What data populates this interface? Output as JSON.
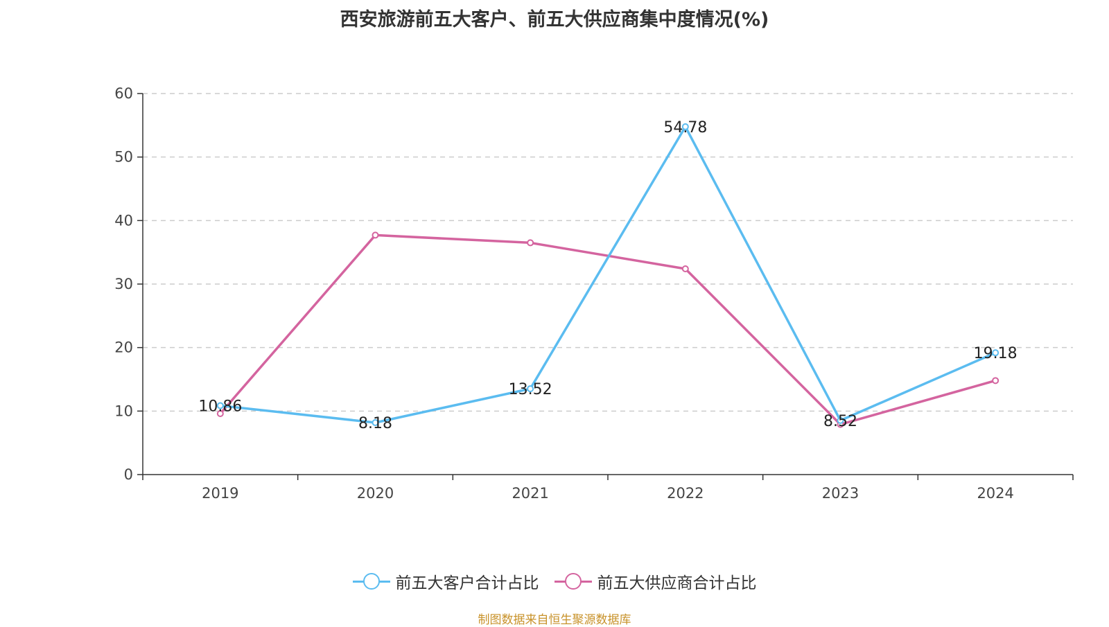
{
  "title": "西安旅游前五大客户、前五大供应商集中度情况(%)",
  "source": "制图数据来自恒生聚源数据库",
  "colors": {
    "series1": "#5bbcf0",
    "series2": "#d4649f",
    "grid": "#cccccc",
    "axis": "#333333"
  },
  "chart_data": {
    "type": "line",
    "title": "西安旅游前五大客户、前五大供应商集中度情况(%)",
    "categories": [
      "2019",
      "2020",
      "2021",
      "2022",
      "2023",
      "2024"
    ],
    "ylim": [
      0,
      60
    ],
    "yticks": [
      0,
      10,
      20,
      30,
      40,
      50,
      60
    ],
    "grid": true,
    "legend_position": "bottom",
    "series": [
      {
        "name": "前五大客户合计占比",
        "values": [
          10.86,
          8.18,
          13.52,
          54.78,
          8.52,
          19.18
        ],
        "labels": [
          "10.86",
          "8.18",
          "13.52",
          "54.78",
          "8.52",
          "19.18"
        ]
      },
      {
        "name": "前五大供应商合计占比",
        "values": [
          9.6,
          37.7,
          36.5,
          32.4,
          7.9,
          14.8
        ]
      }
    ]
  }
}
